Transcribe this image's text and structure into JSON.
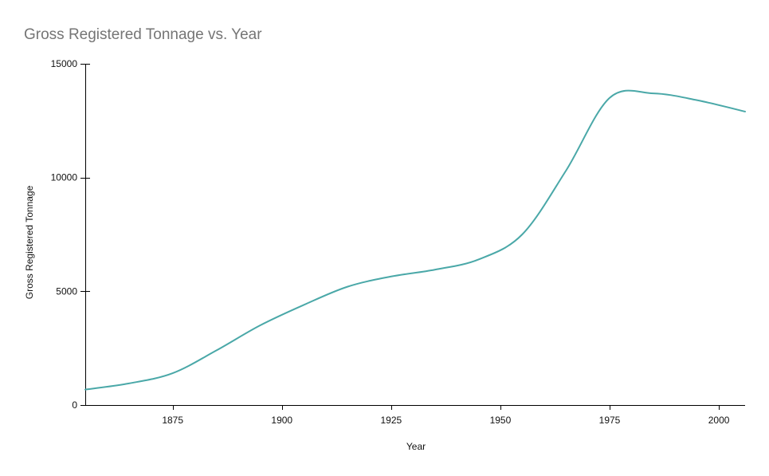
{
  "chart_data": {
    "type": "line",
    "title": "Gross Registered Tonnage vs. Year",
    "xlabel": "Year",
    "ylabel": "Gross Registered Tonnage",
    "xlim": [
      1855,
      2006
    ],
    "ylim": [
      0,
      15000
    ],
    "x_ticks": [
      1875,
      1900,
      1925,
      1950,
      1975,
      2000
    ],
    "y_ticks": [
      0,
      5000,
      10000,
      15000
    ],
    "grid": false,
    "series": [
      {
        "name": "Gross Registered Tonnage",
        "color": "#4aa8a8",
        "x": [
          1855,
          1865,
          1875,
          1885,
          1895,
          1905,
          1915,
          1925,
          1935,
          1945,
          1955,
          1965,
          1975,
          1985,
          1995,
          2006
        ],
        "y": [
          680,
          950,
          1400,
          2400,
          3500,
          4400,
          5200,
          5650,
          5950,
          6400,
          7500,
          10300,
          13500,
          13700,
          13400,
          12900
        ]
      }
    ]
  }
}
